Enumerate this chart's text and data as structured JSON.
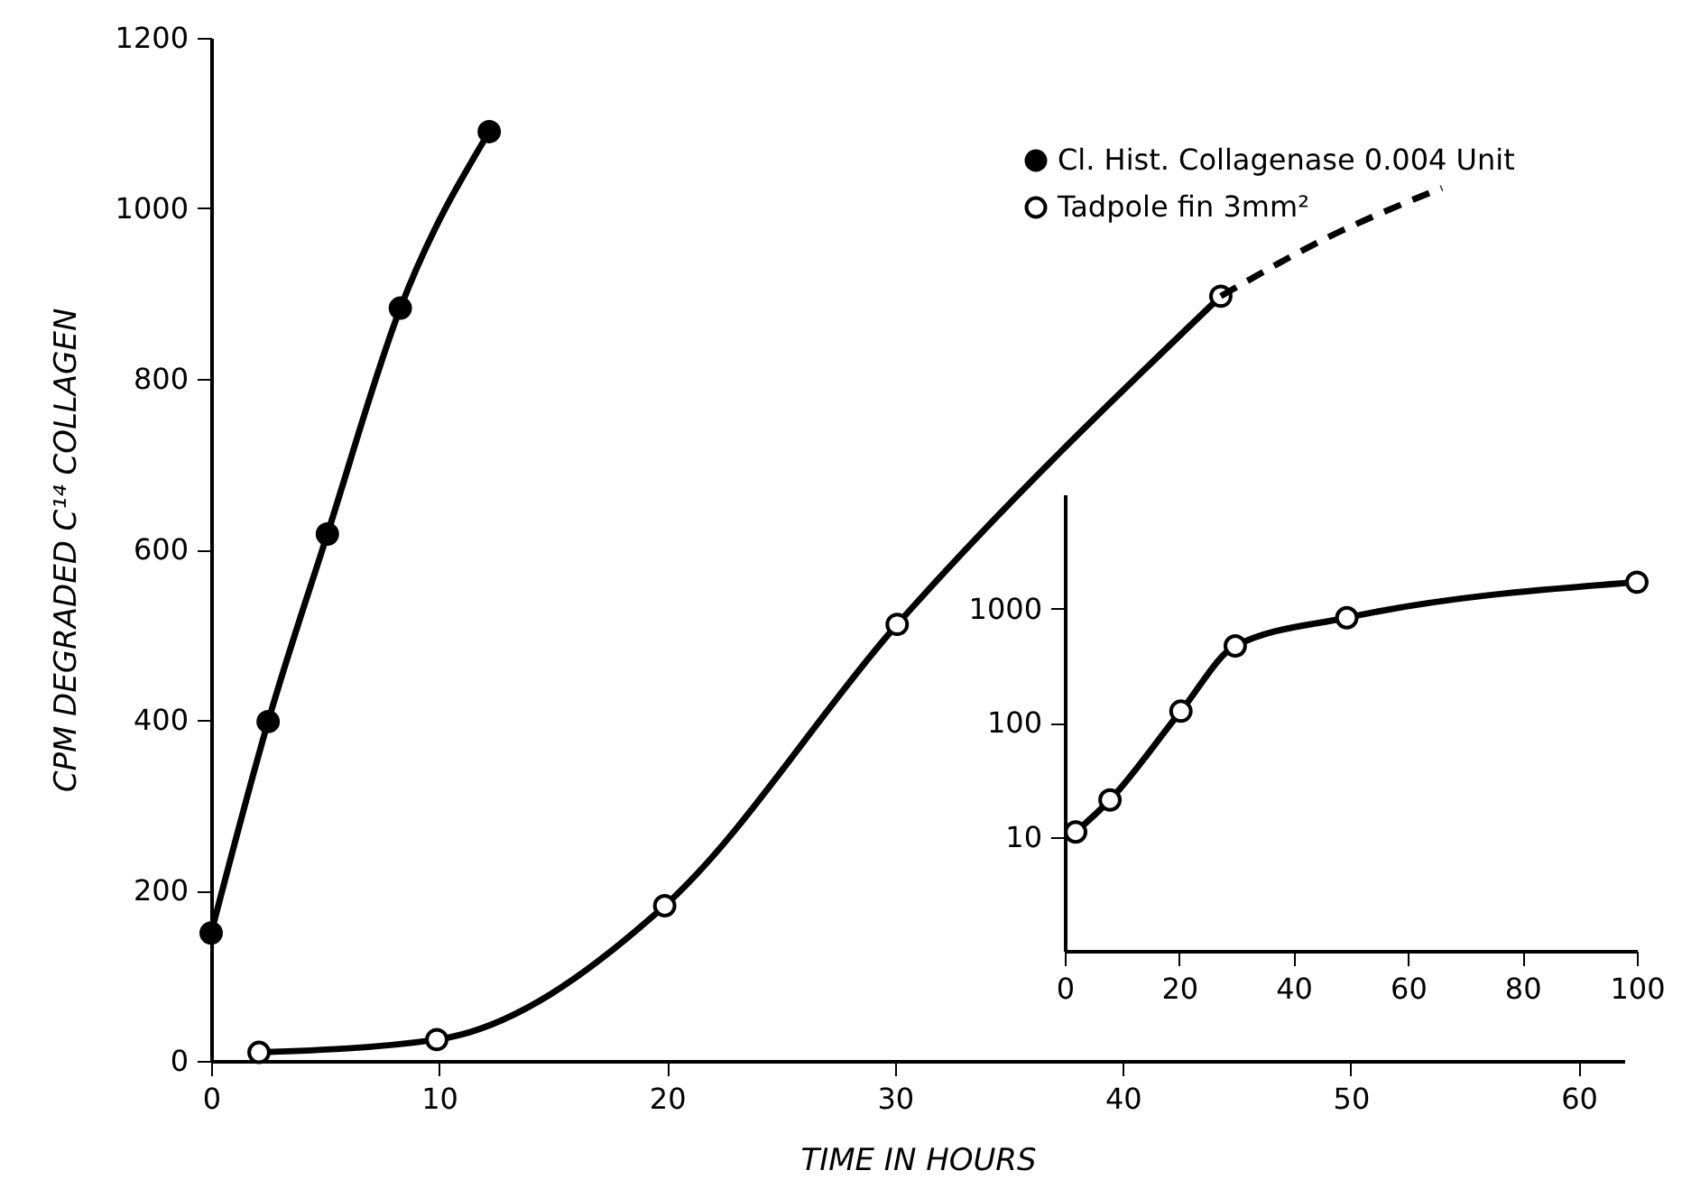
{
  "chart_data": [
    {
      "type": "line",
      "xlabel": "TIME IN HOURS",
      "ylabel": "CPM DEGRADED C¹⁴ COLLAGEN",
      "xlim": [
        0,
        62
      ],
      "xticks": [
        0,
        10,
        20,
        30,
        40,
        50,
        60
      ],
      "ylim": [
        0,
        1200
      ],
      "yticks": [
        0,
        200,
        400,
        600,
        800,
        1000,
        1200
      ],
      "legend": "top right",
      "grid": false,
      "marker": "circle",
      "series": [
        {
          "name": "Cl. Hist. Collagenase 0.004 Unit",
          "color": "#000000",
          "x": [
            0,
            2.5,
            5.1,
            8.3,
            12.2
          ],
          "values": [
            150,
            398,
            618,
            883,
            1090
          ]
        },
        {
          "name": "Tadpole fin 3mm²",
          "color": "#000000",
          "x": [
            2.1,
            9.9,
            19.9,
            30.1,
            44.3
          ],
          "values": [
            10,
            25,
            182,
            512,
            897
          ]
        },
        {
          "color": "#000000",
          "marker": "none",
          "line_style": "dashed",
          "x": [
            44.3,
            49,
            54
          ],
          "values": [
            897,
            966,
            1024
          ]
        }
      ]
    },
    {
      "type": "line",
      "log": "y",
      "xlim": [
        0,
        100
      ],
      "xticks": [
        0,
        20,
        40,
        60,
        80,
        100
      ],
      "ylim": [
        1,
        10000
      ],
      "yticks": [
        10,
        100,
        1000
      ],
      "grid": false,
      "marker": "circle",
      "series": [
        {
          "color": "#000000",
          "x": [
            1.9,
            7.9,
            20.3,
            29.8,
            49.3,
            100
          ],
          "values": [
            11,
            21,
            126,
            470,
            830,
            1700
          ]
        }
      ]
    }
  ]
}
